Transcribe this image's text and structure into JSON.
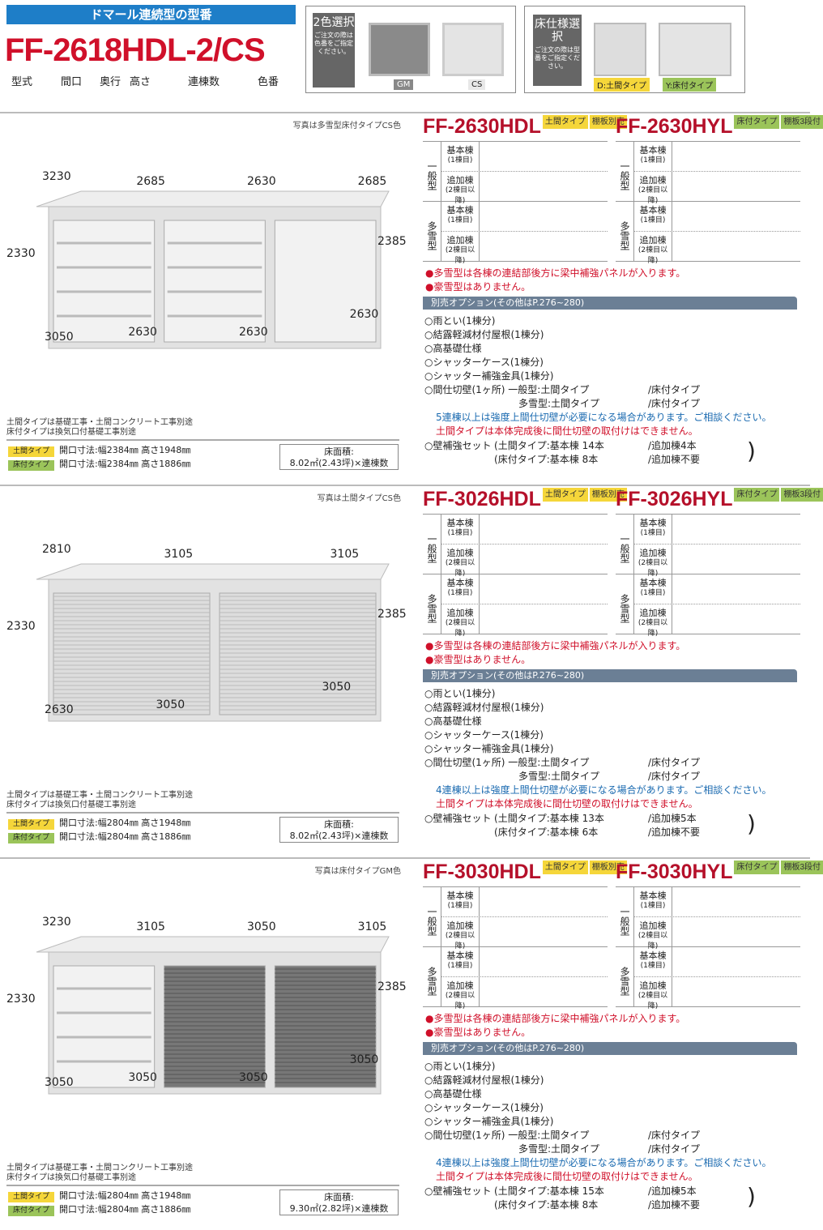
{
  "header": {
    "banner": "ドマール連続型の型番",
    "code": "FF-2618HDL-2/CS",
    "captions": [
      "型式",
      "間口",
      "奥行",
      "高さ",
      "連棟数",
      "色番"
    ],
    "color_select": {
      "title": "2色選択",
      "note": "ご注文の際は色番をご指定ください。",
      "options": [
        "GM",
        "CS"
      ]
    },
    "floor_select": {
      "title": "床仕様選択",
      "note": "ご注文の際は型番をご指定ください。",
      "options": [
        "D:土間タイプ",
        "Y:床付タイプ"
      ]
    }
  },
  "colors": {
    "red": "#d0102a",
    "blue": "#1e7ec8",
    "yellow": "#f5d63a",
    "green": "#9bc45a"
  },
  "common": {
    "group_general": "一般型",
    "group_snow": "多雪型",
    "row_basic": "基本棟",
    "row_basic_sub": "(1棟目)",
    "row_add": "追加棟",
    "row_add_sub": "(2棟目以降)",
    "tag_doma": "土間タイプ",
    "tag_doma_extra": "棚板別売",
    "tag_yuka": "床付タイプ",
    "tag_yuka_extra": "棚板3段付",
    "red_note1": "●多雪型は各棟の連結部後方に梁中補強パネルが入ります。",
    "red_note2": "●豪雪型はありません。",
    "options_header": "別売オプション(その他はP.276~280)",
    "options": [
      "○雨とい(1棟分)",
      "○結露軽減材付屋根(1棟分)",
      "○高基礎仕様",
      "○シャッターケース(1棟分)",
      "○シャッター補強金具(1棟分)"
    ],
    "partition": "○間仕切壁(1ヶ所) 一般型:土間タイプ",
    "partition_snow": "多雪型:土間タイプ",
    "partition_yuka": "/床付タイプ",
    "red_partition": "土間タイプは本体完成後に間仕切壁の取付けはできません。",
    "wall_label": "○壁補強セット",
    "wall_doma": "土間タイプ:基本棟",
    "wall_yuka": "床付タイプ:基本棟",
    "left_note1": "土間タイプは基礎工事・土間コンクリート工事別途",
    "left_note2": "床付タイプは換気口付基礎工事別途",
    "badge_doma": "土間タイプ",
    "badge_yuka": "床付タイプ",
    "area_label": "床面積:"
  },
  "sections": [
    {
      "photo_note": "写真は多雪型床付タイプCS色",
      "model_d": "FF-2630HDL",
      "model_y": "FF-2630HYL",
      "dims_top": [
        "3230",
        "2685",
        "2630",
        "2685"
      ],
      "dim_left": "2330",
      "dim_right": "2385",
      "dims_bottom": [
        "3050",
        "2630",
        "2630",
        "2630"
      ],
      "blue_note": "5連棟以上は強度上間仕切壁が必要になる場合があります。ご相談ください。",
      "wall_doma_n": "14本",
      "wall_doma_add": "/追加棟4本",
      "wall_yuka_n": "8本",
      "wall_yuka_add": "/追加棟不要",
      "open_doma": "開口寸法:幅2384㎜ 高さ1948㎜",
      "open_yuka": "開口寸法:幅2384㎜ 高さ1886㎜",
      "area": "8.02㎡(2.43坪)×連棟数",
      "units": 3,
      "shutters": [
        "shelf",
        "shelf",
        "open"
      ]
    },
    {
      "photo_note": "写真は土間タイプCS色",
      "model_d": "FF-3026HDL",
      "model_y": "FF-3026HYL",
      "dims_top": [
        "2810",
        "3105",
        "3105"
      ],
      "dim_left": "2330",
      "dim_right": "2385",
      "dims_bottom": [
        "2630",
        "3050",
        "3050"
      ],
      "blue_note": "4連棟以上は強度上間仕切壁が必要になる場合があります。ご相談ください。",
      "wall_doma_n": "13本",
      "wall_doma_add": "/追加棟5本",
      "wall_yuka_n": "6本",
      "wall_yuka_add": "/追加棟不要",
      "open_doma": "開口寸法:幅2804㎜ 高さ1948㎜",
      "open_yuka": "開口寸法:幅2804㎜ 高さ1886㎜",
      "area": "8.02㎡(2.43坪)×連棟数",
      "units": 2,
      "shutters": [
        "closed",
        "closed"
      ]
    },
    {
      "photo_note": "写真は床付タイプGM色",
      "model_d": "FF-3030HDL",
      "model_y": "FF-3030HYL",
      "dims_top": [
        "3230",
        "3105",
        "3050",
        "3105"
      ],
      "dim_left": "2330",
      "dim_right": "2385",
      "dims_bottom": [
        "3050",
        "3050",
        "3050",
        "3050"
      ],
      "blue_note": "4連棟以上は強度上間仕切壁が必要になる場合があります。ご相談ください。",
      "wall_doma_n": "15本",
      "wall_doma_add": "/追加棟5本",
      "wall_yuka_n": "8本",
      "wall_yuka_add": "/追加棟不要",
      "open_doma": "開口寸法:幅2804㎜ 高さ1948㎜",
      "open_yuka": "開口寸法:幅2804㎜ 高さ1886㎜",
      "area": "9.30㎡(2.82坪)×連棟数",
      "units": 3,
      "shutters": [
        "shelf",
        "closed-dark",
        "closed-dark"
      ]
    }
  ]
}
